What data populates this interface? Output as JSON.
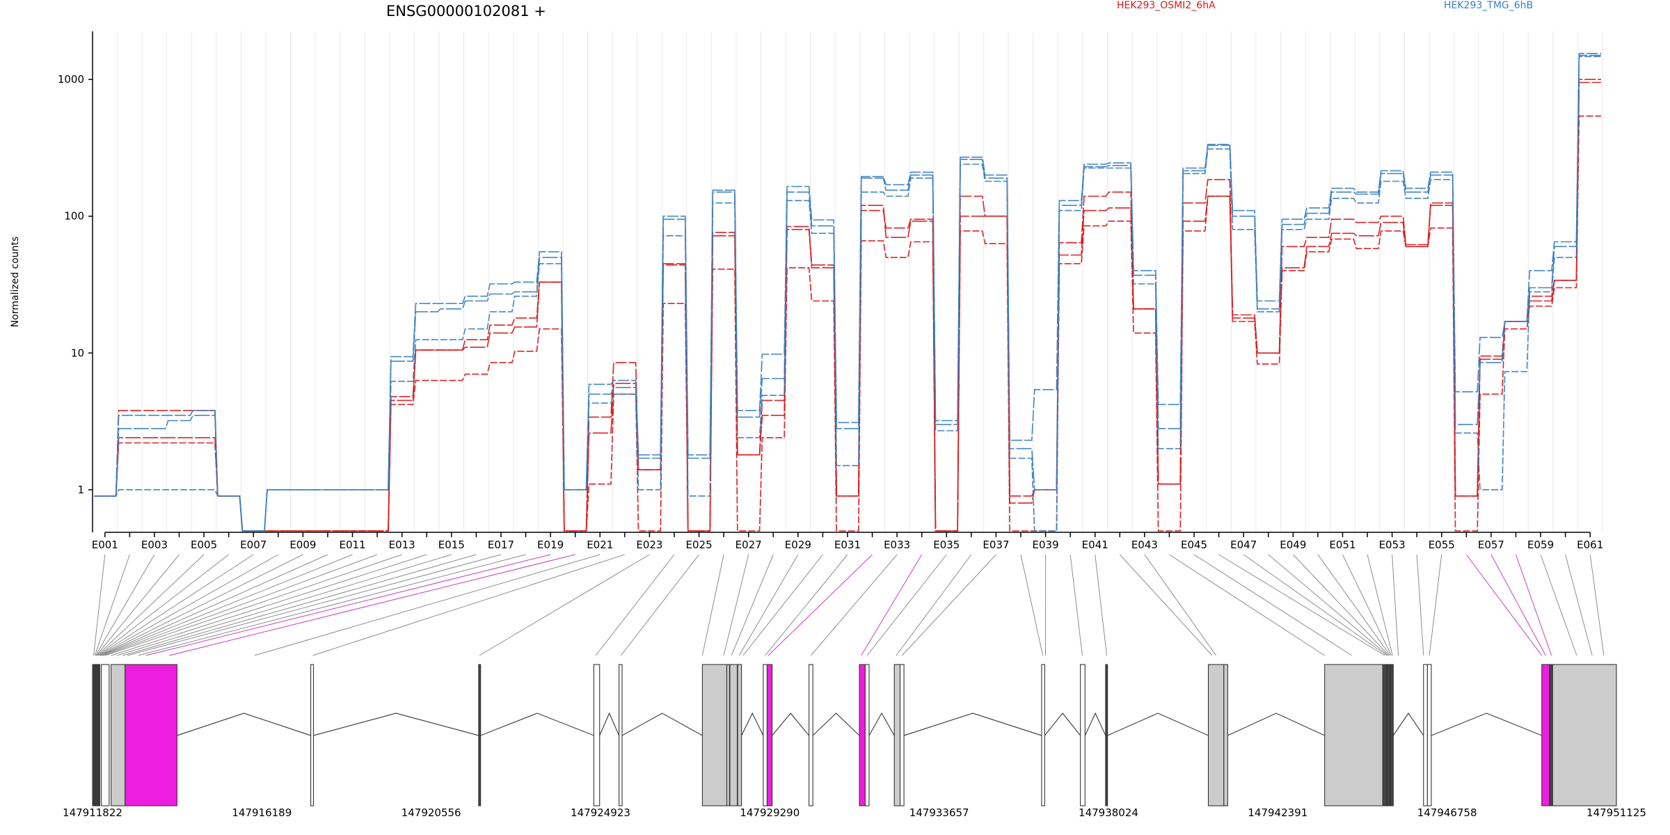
{
  "chart_data": {
    "type": "line",
    "title": "ENSG00000102081 +",
    "ylabel": "Normalized counts",
    "xlabel": "",
    "yscale": "log",
    "ylim": [
      0.5,
      2000
    ],
    "grid": true,
    "legend_position": "top-right",
    "ytick_labels": [
      "1",
      "10",
      "100",
      "1000"
    ],
    "yticks": [
      1,
      10,
      100,
      1000
    ],
    "exon_ids": [
      "E001",
      "E002",
      "E003",
      "E004",
      "E005",
      "E006",
      "E007",
      "E008",
      "E009",
      "E010",
      "E011",
      "E012",
      "E013",
      "E014",
      "E015",
      "E016",
      "E017",
      "E018",
      "E019",
      "E020",
      "E021",
      "E022",
      "E023",
      "E024",
      "E025",
      "E026",
      "E027",
      "E028",
      "E029",
      "E030",
      "E031",
      "E032",
      "E033",
      "E034",
      "E035",
      "E036",
      "E037",
      "E038",
      "E039",
      "E040",
      "E041",
      "E042",
      "E043",
      "E044",
      "E045",
      "E046",
      "E047",
      "E048",
      "E049",
      "E050",
      "E051",
      "E052",
      "E053",
      "E054",
      "E055",
      "E056",
      "E057",
      "E058",
      "E059",
      "E060",
      "E061"
    ],
    "exon_labels": [
      "E001",
      "E003",
      "E005",
      "E007",
      "E009",
      "E011",
      "E013",
      "E015",
      "E017",
      "E019",
      "E021",
      "E023",
      "E025",
      "E027",
      "E029",
      "E031",
      "E033",
      "E035",
      "E037",
      "E039",
      "E041",
      "E043",
      "E045",
      "E047",
      "E049",
      "E051",
      "E053",
      "E055",
      "E057",
      "E059",
      "E061"
    ],
    "series": [
      {
        "name": "HEK293_OSMI2_6hA",
        "group": "HEK293_OSMI2_6hA",
        "values": [
          0.9,
          3.8,
          3.8,
          3.8,
          3.8,
          0.9,
          0.5,
          0.5,
          0.5,
          0.5,
          0.5,
          0.5,
          4.8,
          10.5,
          10.5,
          12.5,
          16,
          18,
          33,
          0.5,
          3.4,
          8.5,
          1.4,
          44,
          0.5,
          76,
          1.8,
          4.5,
          80,
          42,
          0.9,
          110,
          82,
          95,
          0.5,
          140,
          100,
          0.9,
          1.0,
          64,
          140,
          150,
          21,
          1.1,
          125,
          185,
          19,
          10,
          60,
          70,
          95,
          90,
          100,
          62,
          125,
          0.9,
          9.5,
          17,
          26,
          34,
          1000
        ]
      },
      {
        "name": "HEK293_OSMI2_6hA",
        "group": "HEK293_OSMI2_6hA",
        "values": [
          0.9,
          2.4,
          2.4,
          2.4,
          2.4,
          0.9,
          0.5,
          0.5,
          0.5,
          0.5,
          0.5,
          0.5,
          4.5,
          10.5,
          10.5,
          11,
          14,
          15.5,
          33,
          0.5,
          2.6,
          6.0,
          1.4,
          45,
          0.5,
          72,
          1.8,
          3.5,
          84,
          44,
          0.9,
          120,
          70,
          92,
          0.5,
          100,
          100,
          0.8,
          1.0,
          52,
          110,
          115,
          21,
          1.1,
          92,
          140,
          18,
          10,
          42,
          60,
          75,
          72,
          90,
          60,
          120,
          0.9,
          9.0,
          17,
          24,
          34,
          950
        ]
      },
      {
        "name": "HEK293_OSMI2_6hA",
        "group": "HEK293_OSMI2_6hA",
        "values": [
          0.9,
          2.2,
          2.2,
          2.2,
          2.2,
          0.9,
          0.5,
          0.5,
          0.5,
          0.5,
          0.5,
          0.5,
          4.2,
          6.3,
          6.3,
          7.0,
          8.5,
          10.3,
          15,
          0.5,
          1.1,
          5.0,
          0.5,
          23,
          0.5,
          41,
          0.5,
          2.4,
          42,
          24,
          0.5,
          66,
          50,
          65,
          0.5,
          78,
          63,
          0.5,
          0.5,
          45,
          85,
          92,
          14,
          0.5,
          78,
          140,
          17,
          8.3,
          40,
          55,
          68,
          58,
          78,
          60,
          82,
          0.5,
          5.0,
          15,
          22,
          30,
          540
        ]
      },
      {
        "name": "HEK293_TMG_6hB",
        "group": "HEK293_TMG_6hB",
        "values": [
          0.9,
          3.5,
          3.5,
          3.5,
          3.8,
          0.9,
          0.5,
          1.0,
          1.0,
          1.0,
          1.0,
          1.0,
          9.4,
          23,
          23,
          26,
          32,
          33,
          55,
          1.0,
          5.9,
          6.3,
          1.8,
          100,
          1.8,
          155,
          3.8,
          9.8,
          165,
          94,
          3.1,
          195,
          170,
          210,
          3.2,
          270,
          200,
          2.3,
          5.4,
          130,
          240,
          245,
          40,
          4.2,
          225,
          335,
          110,
          24,
          95,
          115,
          160,
          150,
          215,
          160,
          210,
          5.2,
          13,
          17,
          40,
          65,
          1550
        ]
      },
      {
        "name": "HEK293_TMG_6hB",
        "group": "HEK293_TMG_6hB",
        "values": [
          0.9,
          2.8,
          2.8,
          3.2,
          3.5,
          0.9,
          0.5,
          1.0,
          1.0,
          1.0,
          1.0,
          1.0,
          8.7,
          20,
          21,
          24,
          27,
          28,
          50,
          1.0,
          5.0,
          5.6,
          1.7,
          95,
          1.7,
          150,
          3.4,
          6.5,
          150,
          85,
          2.8,
          190,
          155,
          200,
          3.0,
          260,
          190,
          2.0,
          1.0,
          120,
          230,
          235,
          37,
          2.8,
          215,
          330,
          100,
          21,
          87,
          105,
          150,
          145,
          205,
          150,
          200,
          3.0,
          8.5,
          17,
          30,
          60,
          1500
        ]
      },
      {
        "name": "HEK293_TMG_6hB",
        "group": "HEK293_TMG_6hB",
        "values": [
          0.9,
          1.0,
          1.0,
          1.0,
          1.0,
          0.9,
          0.5,
          1.0,
          1.0,
          1.0,
          1.0,
          1.0,
          6.2,
          12.5,
          12.5,
          15,
          20,
          26,
          45,
          1.0,
          4.3,
          5.0,
          1.0,
          72,
          0.9,
          125,
          2.4,
          4.9,
          130,
          75,
          1.5,
          150,
          140,
          190,
          2.7,
          240,
          180,
          1.7,
          0.5,
          110,
          225,
          225,
          32,
          2.0,
          205,
          310,
          80,
          20,
          80,
          95,
          135,
          125,
          180,
          135,
          185,
          2.6,
          1.0,
          7.3,
          28,
          50,
          1470
        ]
      }
    ],
    "group_colors": {
      "HEK293_OSMI2_6hA": "#d7191c",
      "HEK293_TMG_6hB": "#3a7fbf"
    },
    "genome_axis_labels": [
      "147911822",
      "147916189",
      "147920556",
      "147924923",
      "147929290",
      "147933657",
      "147938024",
      "147942391",
      "147946758",
      "147951125"
    ],
    "genomic_range": [
      147911822,
      147951125
    ],
    "highlight_color": "#ee1ee0",
    "exon_blocks": [
      [
        147911822,
        147911850,
        "e"
      ],
      [
        147911860,
        147911890,
        "e"
      ],
      [
        147911900,
        147911935,
        "e"
      ],
      [
        147911945,
        147911965,
        "e"
      ],
      [
        147911975,
        147912010,
        "e"
      ],
      [
        147912050,
        147912250,
        "w"
      ],
      [
        147912300,
        147912660,
        "g"
      ],
      [
        147912660,
        147914000,
        "h"
      ],
      [
        147917450,
        147917520,
        "w"
      ],
      [
        147921780,
        147921830,
        "e"
      ],
      [
        147924750,
        147924900,
        "w"
      ],
      [
        147925400,
        147925480,
        "w"
      ],
      [
        147927550,
        147928180,
        "g"
      ],
      [
        147928180,
        147928250,
        "g"
      ],
      [
        147928260,
        147928450,
        "g"
      ],
      [
        147928460,
        147928560,
        "g"
      ],
      [
        147929120,
        147929220,
        "w"
      ],
      [
        147929220,
        147929350,
        "h"
      ],
      [
        147930300,
        147930400,
        "w"
      ],
      [
        147931600,
        147931750,
        "h"
      ],
      [
        147931750,
        147931850,
        "w"
      ],
      [
        147932500,
        147932650,
        "g"
      ],
      [
        147932650,
        147932750,
        "w"
      ],
      [
        147936300,
        147936380,
        "w"
      ],
      [
        147937300,
        147937420,
        "w"
      ],
      [
        147937950,
        147938000,
        "e"
      ],
      [
        147940600,
        147941000,
        "g"
      ],
      [
        147941000,
        147941100,
        "g"
      ],
      [
        147943600,
        147945100,
        "g"
      ],
      [
        147945100,
        147945200,
        "e"
      ],
      [
        147945210,
        147945280,
        "e"
      ],
      [
        147945290,
        147945370,
        "e"
      ],
      [
        147946150,
        147946250,
        "w"
      ],
      [
        147946250,
        147946350,
        "w"
      ],
      [
        147949200,
        147949400,
        "h"
      ],
      [
        147949400,
        147949480,
        "e"
      ],
      [
        147949480,
        147951125,
        "g"
      ]
    ],
    "gene_model_connections": [
      [
        0,
        147911850,
        "g"
      ],
      [
        1,
        147911880,
        "g"
      ],
      [
        2,
        147911900,
        "g"
      ],
      [
        3,
        147911920,
        "g"
      ],
      [
        4,
        147911940,
        "g"
      ],
      [
        5,
        147911960,
        "g"
      ],
      [
        6,
        147911980,
        "g"
      ],
      [
        7,
        147912000,
        "g"
      ],
      [
        8,
        147912020,
        "g"
      ],
      [
        9,
        147912040,
        "g"
      ],
      [
        10,
        147912060,
        "g"
      ],
      [
        11,
        147912100,
        "g"
      ],
      [
        12,
        147912150,
        "g"
      ],
      [
        13,
        147912300,
        "g"
      ],
      [
        14,
        147912450,
        "g"
      ],
      [
        15,
        147912600,
        "g"
      ],
      [
        16,
        147912720,
        "g"
      ],
      [
        17,
        147913000,
        "g"
      ],
      [
        18,
        147913200,
        "h"
      ],
      [
        19,
        147913800,
        "h"
      ],
      [
        20,
        147916000,
        "g"
      ],
      [
        21,
        147917500,
        "g"
      ],
      [
        22,
        147921800,
        "g"
      ],
      [
        23,
        147924800,
        "g"
      ],
      [
        24,
        147925450,
        "g"
      ],
      [
        25,
        147927550,
        "g"
      ],
      [
        26,
        147928100,
        "g"
      ],
      [
        27,
        147928300,
        "g"
      ],
      [
        28,
        147928500,
        "g"
      ],
      [
        29,
        147928600,
        "g"
      ],
      [
        30,
        147929170,
        "g"
      ],
      [
        31,
        147929250,
        "h"
      ],
      [
        32,
        147930350,
        "g"
      ],
      [
        33,
        147931650,
        "h"
      ],
      [
        34,
        147931800,
        "g"
      ],
      [
        35,
        147932550,
        "g"
      ],
      [
        36,
        147932700,
        "g"
      ],
      [
        37,
        147936330,
        "g"
      ],
      [
        38,
        147936400,
        "g"
      ],
      [
        39,
        147937350,
        "g"
      ],
      [
        40,
        147937980,
        "g"
      ],
      [
        41,
        147940700,
        "g"
      ],
      [
        42,
        147940800,
        "g"
      ],
      [
        43,
        147943600,
        "g"
      ],
      [
        44,
        147944300,
        "g"
      ],
      [
        45,
        147945150,
        "g"
      ],
      [
        46,
        147945200,
        "g"
      ],
      [
        47,
        147945230,
        "g"
      ],
      [
        48,
        147945260,
        "g"
      ],
      [
        49,
        147945290,
        "g"
      ],
      [
        50,
        147945320,
        "g"
      ],
      [
        51,
        147945350,
        "g"
      ],
      [
        52,
        147945500,
        "g"
      ],
      [
        53,
        147946150,
        "g"
      ],
      [
        54,
        147946300,
        "g"
      ],
      [
        55,
        147949200,
        "h"
      ],
      [
        56,
        147949300,
        "h"
      ],
      [
        57,
        147949450,
        "h"
      ],
      [
        58,
        147950100,
        "g"
      ],
      [
        59,
        147950500,
        "g"
      ],
      [
        60,
        147950800,
        "g"
      ]
    ],
    "introns": [
      [
        147914000,
        147917450
      ],
      [
        147917520,
        147921780
      ],
      [
        147921830,
        147924750
      ],
      [
        147924900,
        147925400
      ],
      [
        147925480,
        147927550
      ],
      [
        147928560,
        147929120
      ],
      [
        147929350,
        147930300
      ],
      [
        147930400,
        147931600
      ],
      [
        147931850,
        147932500
      ],
      [
        147932750,
        147936300
      ],
      [
        147936380,
        147937300
      ],
      [
        147937420,
        147937950
      ],
      [
        147938000,
        147940600
      ],
      [
        147941100,
        147943600
      ],
      [
        147945370,
        147946150
      ],
      [
        147946350,
        147949200
      ]
    ]
  }
}
